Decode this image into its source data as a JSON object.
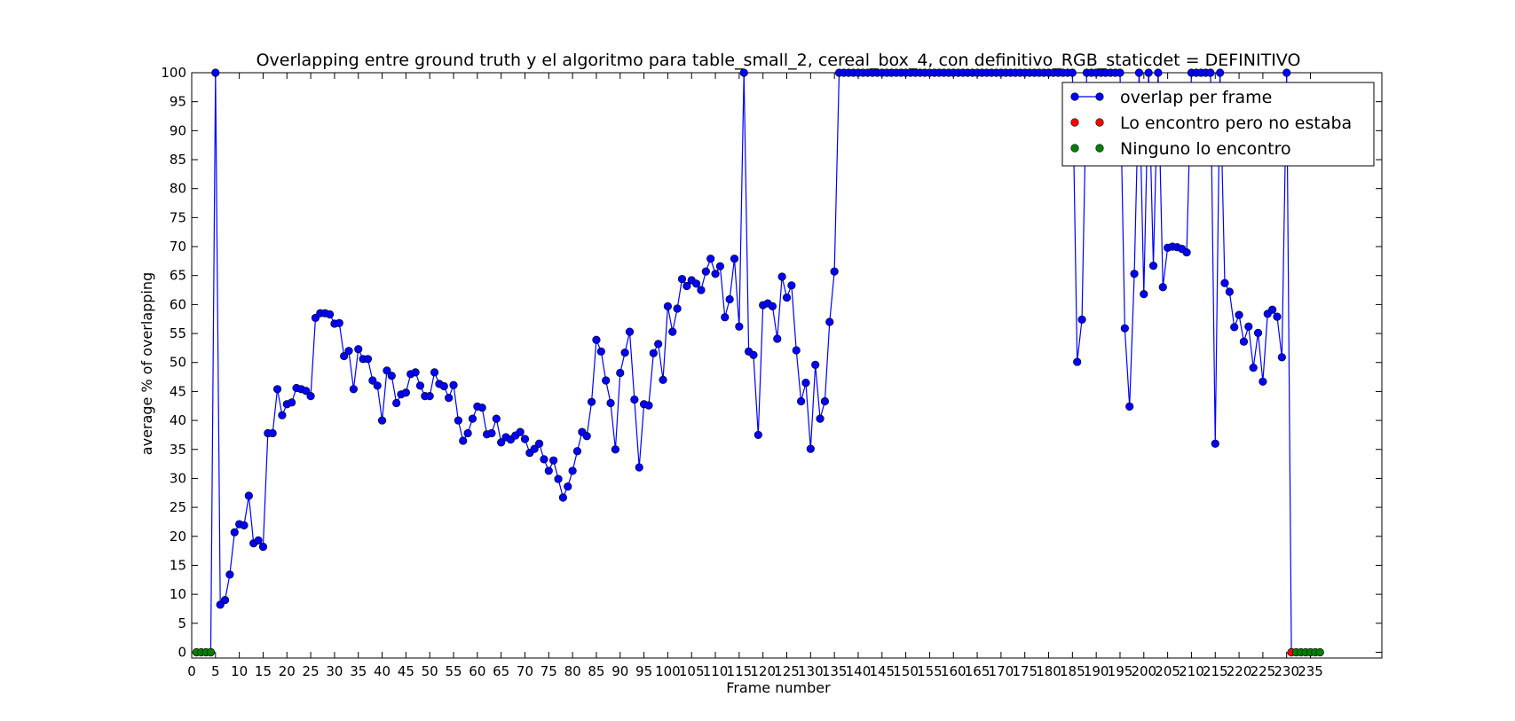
{
  "chart_data": {
    "type": "line",
    "title": "Overlapping entre ground truth y el algoritmo para table_small_2, cereal_box_4, con definitivo_RGB_staticdet = DEFINITIVO",
    "xlabel": "Frame number",
    "ylabel": "average % of overlapping",
    "xlim": [
      0,
      250
    ],
    "ylim": [
      -1,
      100
    ],
    "x_ticks": [
      0,
      5,
      10,
      15,
      20,
      25,
      30,
      35,
      40,
      45,
      50,
      55,
      60,
      65,
      70,
      75,
      80,
      85,
      90,
      95,
      100,
      105,
      110,
      115,
      120,
      125,
      130,
      135,
      140,
      145,
      150,
      155,
      160,
      165,
      170,
      175,
      180,
      185,
      190,
      195,
      200,
      205,
      210,
      215,
      220,
      225,
      230,
      235
    ],
    "y_ticks": [
      0,
      5,
      10,
      15,
      20,
      25,
      30,
      35,
      40,
      45,
      50,
      55,
      60,
      65,
      70,
      75,
      80,
      85,
      90,
      95,
      100
    ],
    "legend_position": "top-right",
    "grid": false,
    "series": [
      {
        "name": "overlap per frame",
        "color": "#0000ff",
        "marker": "circle",
        "line": true,
        "points": [
          [
            4,
            0
          ],
          [
            5,
            100
          ],
          [
            6,
            8.2
          ],
          [
            7,
            9
          ],
          [
            8,
            13.4
          ],
          [
            9,
            20.7
          ],
          [
            10,
            22.1
          ],
          [
            11,
            21.9
          ],
          [
            12,
            27
          ],
          [
            13,
            18.8
          ],
          [
            14,
            19.3
          ],
          [
            15,
            18.2
          ],
          [
            16,
            37.8
          ],
          [
            17,
            37.8
          ],
          [
            18,
            45.4
          ],
          [
            19,
            40.9
          ],
          [
            20,
            42.8
          ],
          [
            21,
            43.1
          ],
          [
            22,
            45.6
          ],
          [
            23,
            45.4
          ],
          [
            24,
            45.1
          ],
          [
            25,
            44.2
          ],
          [
            26,
            57.7
          ],
          [
            27,
            58.5
          ],
          [
            28,
            58.5
          ],
          [
            29,
            58.3
          ],
          [
            30,
            56.7
          ],
          [
            31,
            56.8
          ],
          [
            32,
            51.1
          ],
          [
            33,
            52
          ],
          [
            34,
            45.4
          ],
          [
            35,
            52.3
          ],
          [
            36,
            50.6
          ],
          [
            37,
            50.6
          ],
          [
            38,
            46.9
          ],
          [
            39,
            46
          ],
          [
            40,
            40
          ],
          [
            41,
            48.6
          ],
          [
            42,
            47.7
          ],
          [
            43,
            43
          ],
          [
            44,
            44.5
          ],
          [
            45,
            44.8
          ],
          [
            46,
            48
          ],
          [
            47,
            48.3
          ],
          [
            48,
            46
          ],
          [
            49,
            44.2
          ],
          [
            50,
            44.2
          ],
          [
            51,
            48.3
          ],
          [
            52,
            46.3
          ],
          [
            53,
            45.9
          ],
          [
            54,
            43.9
          ],
          [
            55,
            46.1
          ],
          [
            56,
            40
          ],
          [
            57,
            36.5
          ],
          [
            58,
            37.8
          ],
          [
            59,
            40.3
          ],
          [
            60,
            42.4
          ],
          [
            61,
            42.2
          ],
          [
            62,
            37.6
          ],
          [
            63,
            37.8
          ],
          [
            64,
            40.3
          ],
          [
            65,
            36.2
          ],
          [
            66,
            37.1
          ],
          [
            67,
            36.7
          ],
          [
            68,
            37.4
          ],
          [
            69,
            38
          ],
          [
            70,
            36.8
          ],
          [
            71,
            34.4
          ],
          [
            72,
            35.1
          ],
          [
            73,
            36
          ],
          [
            74,
            33.3
          ],
          [
            75,
            31.3
          ],
          [
            76,
            33.1
          ],
          [
            77,
            29.9
          ],
          [
            78,
            26.7
          ],
          [
            79,
            28.6
          ],
          [
            80,
            31.3
          ],
          [
            81,
            34.7
          ],
          [
            82,
            38
          ],
          [
            83,
            37.3
          ],
          [
            84,
            43.2
          ],
          [
            85,
            53.9
          ],
          [
            86,
            51.9
          ],
          [
            87,
            46.9
          ],
          [
            88,
            43
          ],
          [
            89,
            35
          ],
          [
            90,
            48.2
          ],
          [
            91,
            51.7
          ],
          [
            92,
            55.3
          ],
          [
            93,
            43.6
          ],
          [
            94,
            31.9
          ],
          [
            95,
            42.8
          ],
          [
            96,
            42.6
          ],
          [
            97,
            51.6
          ],
          [
            98,
            53.2
          ],
          [
            99,
            47
          ],
          [
            100,
            59.7
          ],
          [
            101,
            55.3
          ],
          [
            102,
            59.3
          ],
          [
            103,
            64.4
          ],
          [
            104,
            63.2
          ],
          [
            105,
            64.2
          ],
          [
            106,
            63.6
          ],
          [
            107,
            62.5
          ],
          [
            108,
            65.7
          ],
          [
            109,
            67.9
          ],
          [
            110,
            65.3
          ],
          [
            111,
            66.6
          ],
          [
            112,
            57.8
          ],
          [
            113,
            60.9
          ],
          [
            114,
            67.9
          ],
          [
            115,
            56.2
          ],
          [
            116,
            100
          ],
          [
            117,
            51.9
          ],
          [
            118,
            51.3
          ],
          [
            119,
            37.5
          ],
          [
            120,
            59.9
          ],
          [
            121,
            60.2
          ],
          [
            122,
            59.7
          ],
          [
            123,
            54.1
          ],
          [
            124,
            64.8
          ],
          [
            125,
            61.2
          ],
          [
            126,
            63.3
          ],
          [
            127,
            52.1
          ],
          [
            128,
            43.3
          ],
          [
            129,
            46.5
          ],
          [
            130,
            35.1
          ],
          [
            131,
            49.6
          ],
          [
            132,
            40.3
          ],
          [
            133,
            43.3
          ],
          [
            134,
            57
          ],
          [
            135,
            65.7
          ],
          [
            136,
            100
          ],
          [
            137,
            100
          ],
          [
            138,
            100
          ],
          [
            139,
            100
          ],
          [
            140,
            100
          ],
          [
            141,
            100
          ],
          [
            142,
            100
          ],
          [
            143,
            100
          ],
          [
            144,
            100
          ],
          [
            145,
            100
          ],
          [
            146,
            100
          ],
          [
            147,
            100
          ],
          [
            148,
            100
          ],
          [
            149,
            100
          ],
          [
            150,
            100
          ],
          [
            151,
            100
          ],
          [
            152,
            100
          ],
          [
            153,
            100
          ],
          [
            154,
            100
          ],
          [
            155,
            100
          ],
          [
            156,
            100
          ],
          [
            157,
            100
          ],
          [
            158,
            100
          ],
          [
            159,
            100
          ],
          [
            160,
            100
          ],
          [
            161,
            100
          ],
          [
            162,
            100
          ],
          [
            163,
            100
          ],
          [
            164,
            100
          ],
          [
            165,
            100
          ],
          [
            166,
            100
          ],
          [
            167,
            100
          ],
          [
            168,
            100
          ],
          [
            169,
            100
          ],
          [
            170,
            100
          ],
          [
            171,
            100
          ],
          [
            172,
            100
          ],
          [
            173,
            100
          ],
          [
            174,
            100
          ],
          [
            175,
            100
          ],
          [
            176,
            100
          ],
          [
            177,
            100
          ],
          [
            178,
            100
          ],
          [
            179,
            100
          ],
          [
            180,
            100
          ],
          [
            181,
            100
          ],
          [
            182,
            100
          ],
          [
            183,
            100
          ],
          [
            184,
            100
          ],
          [
            185,
            100
          ],
          [
            186,
            50.1
          ],
          [
            187,
            57.4
          ],
          [
            188,
            100
          ],
          [
            189,
            100
          ],
          [
            190,
            100
          ],
          [
            191,
            100
          ],
          [
            192,
            100
          ],
          [
            193,
            100
          ],
          [
            194,
            100
          ],
          [
            195,
            100
          ],
          [
            196,
            55.9
          ],
          [
            197,
            42.4
          ],
          [
            198,
            65.3
          ],
          [
            199,
            100
          ],
          [
            200,
            61.8
          ],
          [
            201,
            100
          ],
          [
            202,
            66.7
          ],
          [
            203,
            100
          ],
          [
            204,
            63
          ],
          [
            205,
            69.8
          ],
          [
            206,
            70
          ],
          [
            207,
            69.9
          ],
          [
            208,
            69.6
          ],
          [
            209,
            69
          ],
          [
            210,
            100
          ],
          [
            211,
            100
          ],
          [
            212,
            100
          ],
          [
            213,
            100
          ],
          [
            214,
            100
          ],
          [
            215,
            36
          ],
          [
            216,
            100
          ],
          [
            217,
            63.7
          ],
          [
            218,
            62.2
          ],
          [
            219,
            56.1
          ],
          [
            220,
            58.2
          ],
          [
            221,
            53.6
          ],
          [
            222,
            56.2
          ],
          [
            223,
            49.1
          ],
          [
            224,
            55.1
          ],
          [
            225,
            46.7
          ],
          [
            226,
            58.4
          ],
          [
            227,
            59.1
          ],
          [
            228,
            57.9
          ],
          [
            229,
            50.9
          ],
          [
            230,
            100
          ],
          [
            231,
            0
          ]
        ]
      },
      {
        "name": "Lo encontro pero no estaba",
        "color": "#ff0000",
        "marker": "circle",
        "line": false,
        "points": [
          [
            231,
            0
          ]
        ]
      },
      {
        "name": "Ninguno lo encontro",
        "color": "#008000",
        "marker": "circle",
        "line": false,
        "points": [
          [
            1,
            0
          ],
          [
            2,
            0
          ],
          [
            3,
            0
          ],
          [
            4,
            0
          ],
          [
            232,
            0
          ],
          [
            233,
            0
          ],
          [
            234,
            0
          ],
          [
            235,
            0
          ],
          [
            236,
            0
          ],
          [
            237,
            0
          ]
        ]
      }
    ]
  }
}
